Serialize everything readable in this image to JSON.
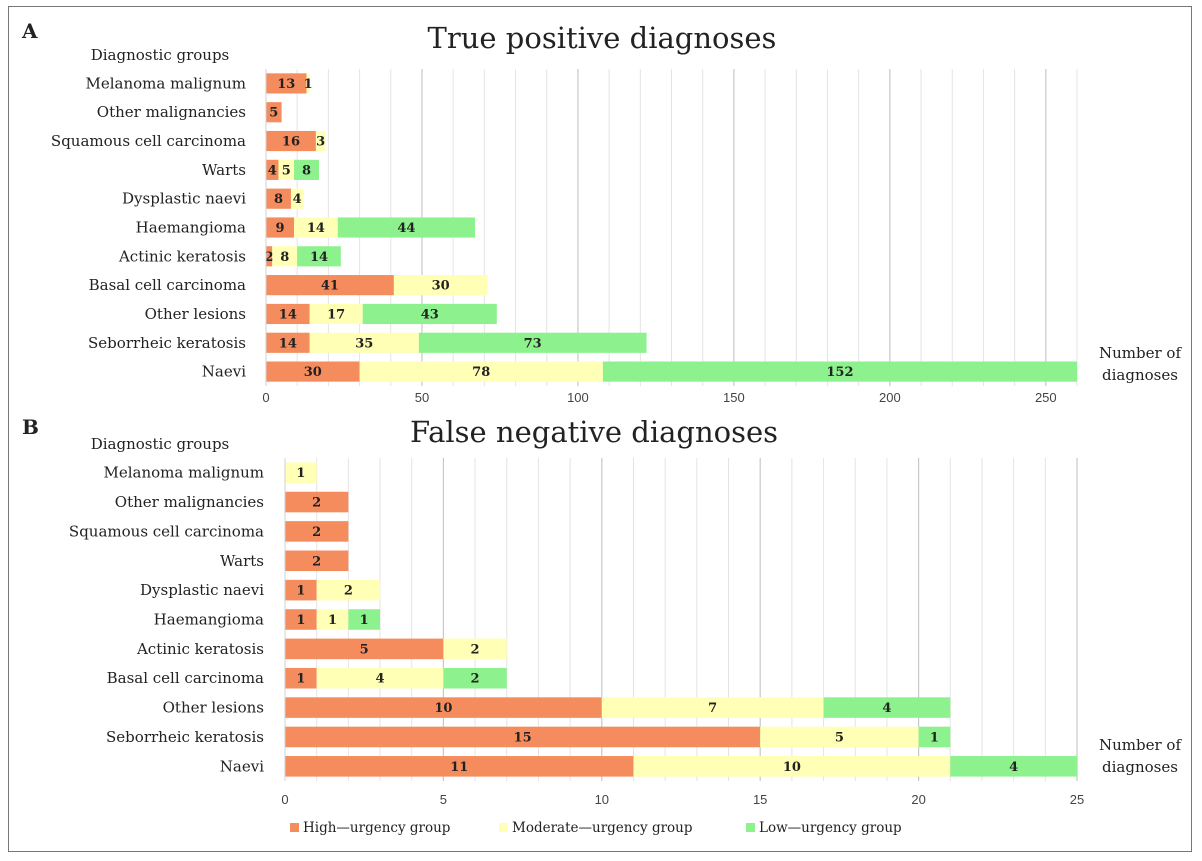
{
  "series_names": [
    "High—urgency group",
    "Moderate—urgency group",
    "Low—urgency group"
  ],
  "colors": {
    "high": "#f48c5e",
    "moderate": "#ffffb5",
    "low": "#8df28d",
    "grid_major": "#c8c8c8",
    "grid_minor": "#e4e4e4"
  },
  "chart_data": [
    {
      "type": "bar",
      "orientation": "horizontal",
      "stacked": true,
      "panel_label": "A",
      "title": "True positive diagnoses",
      "ylabel": "Diagnostic groups",
      "xlabel": [
        "Number of",
        "diagnoses"
      ],
      "xlim": [
        0,
        260
      ],
      "xticks": [
        0,
        50,
        100,
        150,
        200,
        250
      ],
      "categories": [
        "Melanoma malignum",
        "Other malignancies",
        "Squamous cell carcinoma",
        "Warts",
        "Dysplastic naevi",
        "Haemangioma",
        "Actinic keratosis",
        "Basal cell carcinoma",
        "Other lesions",
        "Seborrheic keratosis",
        "Naevi"
      ],
      "series": [
        {
          "name": "High—urgency group",
          "values": [
            13,
            5,
            16,
            4,
            8,
            9,
            2,
            41,
            14,
            14,
            30
          ]
        },
        {
          "name": "Moderate—urgency group",
          "values": [
            1,
            0,
            3,
            5,
            4,
            14,
            8,
            30,
            17,
            35,
            78
          ]
        },
        {
          "name": "Low—urgency group",
          "values": [
            0,
            0,
            0,
            8,
            0,
            44,
            14,
            0,
            43,
            73,
            152
          ]
        }
      ]
    },
    {
      "type": "bar",
      "orientation": "horizontal",
      "stacked": true,
      "panel_label": "B",
      "title": "False negative diagnoses",
      "ylabel": "Diagnostic groups",
      "xlabel": [
        "Number of",
        "diagnoses"
      ],
      "xlim": [
        0,
        25
      ],
      "xticks": [
        0,
        5,
        10,
        15,
        20,
        25
      ],
      "categories": [
        "Melanoma malignum",
        "Other malignancies",
        "Squamous cell carcinoma",
        "Warts",
        "Dysplastic naevi",
        "Haemangioma",
        "Actinic keratosis",
        "Basal cell carcinoma",
        "Other lesions",
        "Seborrheic keratosis",
        "Naevi"
      ],
      "series": [
        {
          "name": "High—urgency group",
          "values": [
            0,
            2,
            2,
            2,
            1,
            1,
            5,
            1,
            10,
            15,
            11
          ]
        },
        {
          "name": "Moderate—urgency group",
          "values": [
            1,
            0,
            0,
            0,
            2,
            1,
            2,
            4,
            7,
            5,
            10
          ]
        },
        {
          "name": "Low—urgency group",
          "values": [
            0,
            0,
            0,
            0,
            0,
            1,
            0,
            2,
            4,
            1,
            4
          ]
        }
      ]
    }
  ]
}
